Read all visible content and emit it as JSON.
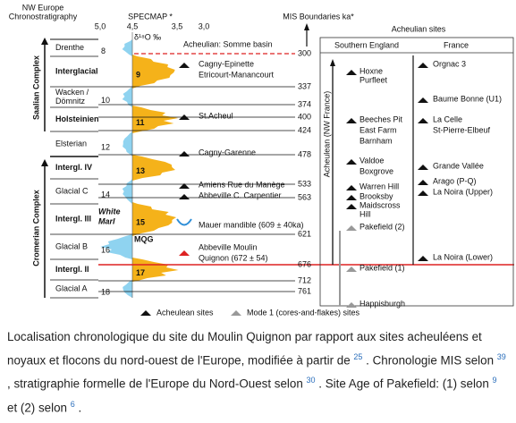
{
  "header": {
    "chronostratigraphy": [
      "NW Europe",
      "Chronostratigraphy"
    ],
    "specmap": "SPECMAP *",
    "isotope_ticks": [
      "5,0",
      "4,5",
      "3,5",
      "3,0"
    ],
    "isotope_unit": "δ¹⁸O ‰",
    "mis": "MIS Boundaries ka*",
    "sites": "Acheulian sites"
  },
  "complexes": [
    "Saalian Complex",
    "Cromerian Complex"
  ],
  "stages": [
    "Drenthe",
    "Interglacial",
    [
      "Wacken /",
      "Dömnitz"
    ],
    "Holsteinien",
    "Elsterian",
    "Intergl. IV",
    "Glacial C",
    "Intergl. III",
    "Glacial B",
    "Intergl. II",
    "Glacial A"
  ],
  "glacial_mis": [
    8,
    10,
    12,
    14,
    16,
    18
  ],
  "interglacial_mis": [
    9,
    11,
    13,
    15,
    17
  ],
  "curve_labels": [
    "White",
    "Marl",
    "MQG"
  ],
  "mis_boundaries": [
    300,
    337,
    374,
    400,
    424,
    478,
    533,
    563,
    621,
    676,
    712,
    761
  ],
  "somme": {
    "title": "Acheulian: Somme basin",
    "sites": [
      "Cagny-Epinette",
      "Etricourt-Manancourt",
      "St.Acheul",
      "Cagny-Garenne",
      "Amiens Rue du Manège",
      "Abbeville C. Carpentier",
      "Mauer mandible (609 ± 40ka)",
      "Abbeville Moulin",
      "Quignon (672 ± 54)"
    ]
  },
  "regions": {
    "england": "Southern England",
    "france": "France",
    "timeline": "Acheulean (NW France)"
  },
  "england_sites": [
    "Hoxne",
    "Purfleet",
    "Beeches Pit",
    "East Farm",
    "Barnham",
    "Valdoe",
    "Boxgrove",
    "Warren Hill",
    "Brooksby",
    "Maidscross",
    "Hill",
    "Pakefield (2)",
    "Pakefield (1)",
    "Happisburgh"
  ],
  "france_sites": [
    "Orgnac 3",
    "Baume Bonne (U1)",
    "La Celle",
    "St-Pierre-Elbeuf",
    "Grande Vallée",
    "Arago (P-Q)",
    "La Noira (Upper)",
    "La Noira (Lower)"
  ],
  "legend": [
    "Acheulean sites",
    "Mode 1 (cores-and-flakes) sites"
  ],
  "caption": [
    "Localisation chronologique du site du Moulin Quignon par rapport aux sites acheuléens et noyaux et flocons du nord-ouest de l'Europe, modifiée à partir de ",
    "25",
    " . Chronologie MIS selon ",
    "39",
    " , stratigraphie formelle de l'Europe du Nord-Ouest selon ",
    "30",
    " . Site Age of Pakefield: (1) selon ",
    "9",
    " et (2) selon ",
    "6",
    " ."
  ]
}
